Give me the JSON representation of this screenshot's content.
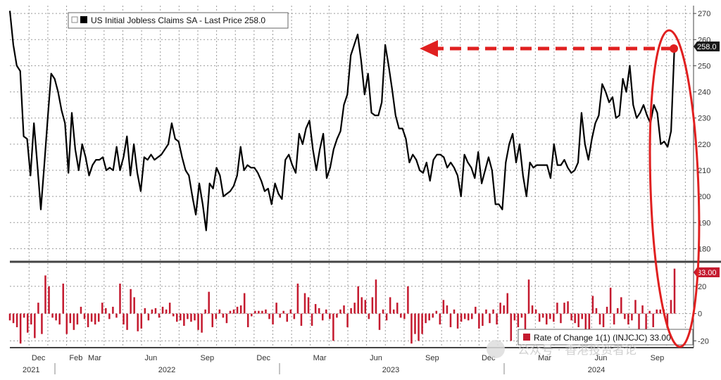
{
  "chart_data": [
    {
      "type": "line",
      "legend": "US Initial Jobless Claims SA - Last Price 258.0",
      "last_value_label": "258.0",
      "ylim": [
        175,
        273
      ],
      "y_ticks": [
        180,
        190,
        200,
        210,
        220,
        230,
        240,
        250,
        260,
        270
      ],
      "grid": "dotted",
      "color": "#000000",
      "series": [
        {
          "values": [
            271,
            258,
            250,
            248,
            223,
            222,
            208,
            228,
            212,
            195,
            212,
            230,
            247,
            245,
            240,
            233,
            228,
            209,
            232,
            218,
            210,
            220,
            215,
            208,
            212,
            214,
            214,
            215,
            210,
            211,
            210,
            219,
            210,
            215,
            223,
            208,
            220,
            209,
            202,
            215,
            214,
            216,
            214,
            215,
            216,
            218,
            220,
            228,
            222,
            221,
            215,
            210,
            208,
            200,
            193,
            205,
            197,
            187,
            205,
            203,
            211,
            208,
            200,
            201,
            202,
            204,
            208,
            219,
            210,
            212,
            211,
            211,
            209,
            206,
            202,
            203,
            197,
            205,
            201,
            199,
            214,
            216,
            212,
            209,
            224,
            220,
            226,
            229,
            218,
            210,
            218,
            224,
            207,
            211,
            218,
            222,
            225,
            235,
            239,
            254,
            258,
            262,
            252,
            239,
            247,
            232,
            231,
            231,
            236,
            258,
            250,
            241,
            231,
            226,
            226,
            222,
            213,
            216,
            214,
            210,
            209,
            213,
            206,
            214,
            216,
            216,
            215,
            211,
            213,
            211,
            208,
            200,
            216,
            213,
            211,
            207,
            217,
            205,
            210,
            215,
            210,
            197,
            197,
            195,
            213,
            220,
            224,
            213,
            220,
            208,
            200,
            213,
            211,
            212,
            212,
            212,
            212,
            207,
            220,
            212,
            212,
            214,
            211,
            209,
            210,
            213,
            232,
            220,
            214,
            222,
            228,
            231,
            243,
            240,
            236,
            238,
            230,
            231,
            245,
            240,
            250,
            235,
            230,
            232,
            235,
            231,
            228,
            235,
            232,
            220,
            221,
            219,
            225,
            258
          ]
        }
      ]
    },
    {
      "type": "bar",
      "legend": "Rate of Change 1(1) (INJCJC) 33.00",
      "last_value_label": "33.00",
      "ylim": [
        -25,
        37
      ],
      "y_ticks": [
        -20,
        0,
        20
      ],
      "color": "#c41a2f",
      "series": [
        {
          "values": [
            -5,
            -7,
            -10,
            -22,
            -3,
            -14,
            -8,
            -18,
            8,
            -15,
            28,
            20,
            -3,
            -5,
            -8,
            22,
            -15,
            -7,
            -12,
            -8,
            5,
            -4,
            -10,
            -6,
            -8,
            -6,
            8,
            4,
            -4,
            5,
            -3,
            22,
            -8,
            -12,
            18,
            12,
            -13,
            -11,
            4,
            -5,
            3,
            4,
            -3,
            5,
            3,
            8,
            -2,
            -6,
            -5,
            -9,
            -4,
            -6,
            -5,
            -12,
            -14,
            3,
            16,
            -10,
            -4,
            3,
            -3,
            -7,
            2,
            3,
            5,
            6,
            15,
            -10,
            -2,
            2,
            2,
            2,
            3,
            -4,
            -8,
            8,
            -3,
            2,
            -6,
            3,
            -4,
            22,
            -9,
            15,
            12,
            -9,
            7,
            4,
            -5,
            3,
            -4,
            -20,
            -3,
            3,
            6,
            -10,
            4,
            8,
            20,
            12,
            10,
            -4,
            12,
            25,
            -12,
            3,
            -5,
            12,
            3,
            8,
            -3,
            -4,
            20,
            -22,
            -15,
            -20,
            -15,
            -7,
            -5,
            -3,
            2,
            -8,
            10,
            6,
            -10,
            3,
            -11,
            -6,
            -4,
            -5,
            -4,
            5,
            -11,
            -9,
            3,
            -7,
            3,
            -8,
            8,
            6,
            15,
            -20,
            -5,
            -10,
            -3,
            -16,
            25,
            6,
            3,
            -6,
            -3,
            -8,
            -4,
            -6,
            8,
            -7,
            8,
            9,
            -5,
            -7,
            -10,
            -4,
            -13,
            -20,
            13,
            4,
            -8,
            -10,
            5,
            19,
            -8,
            4,
            12,
            -4,
            -8,
            -5,
            10,
            -12,
            6,
            -14,
            2,
            -10,
            3,
            3,
            3,
            -9,
            10,
            33
          ]
        }
      ]
    }
  ],
  "x_axis": {
    "month_labels": [
      "Dec",
      "Feb",
      "Mar",
      "Jun",
      "Sep",
      "Dec",
      "Mar",
      "Jun",
      "Sep",
      "Dec",
      "Mar",
      "Jun",
      "Sep"
    ],
    "year_labels": [
      "2021",
      "2022",
      "2023",
      "2024"
    ]
  },
  "annotations": {
    "arrow": "dashed red arrow from last value back to the 2023 peak",
    "ellipse": "red ellipse highlighting the latest readings"
  },
  "watermark": "公众号 · 香港投资者论"
}
